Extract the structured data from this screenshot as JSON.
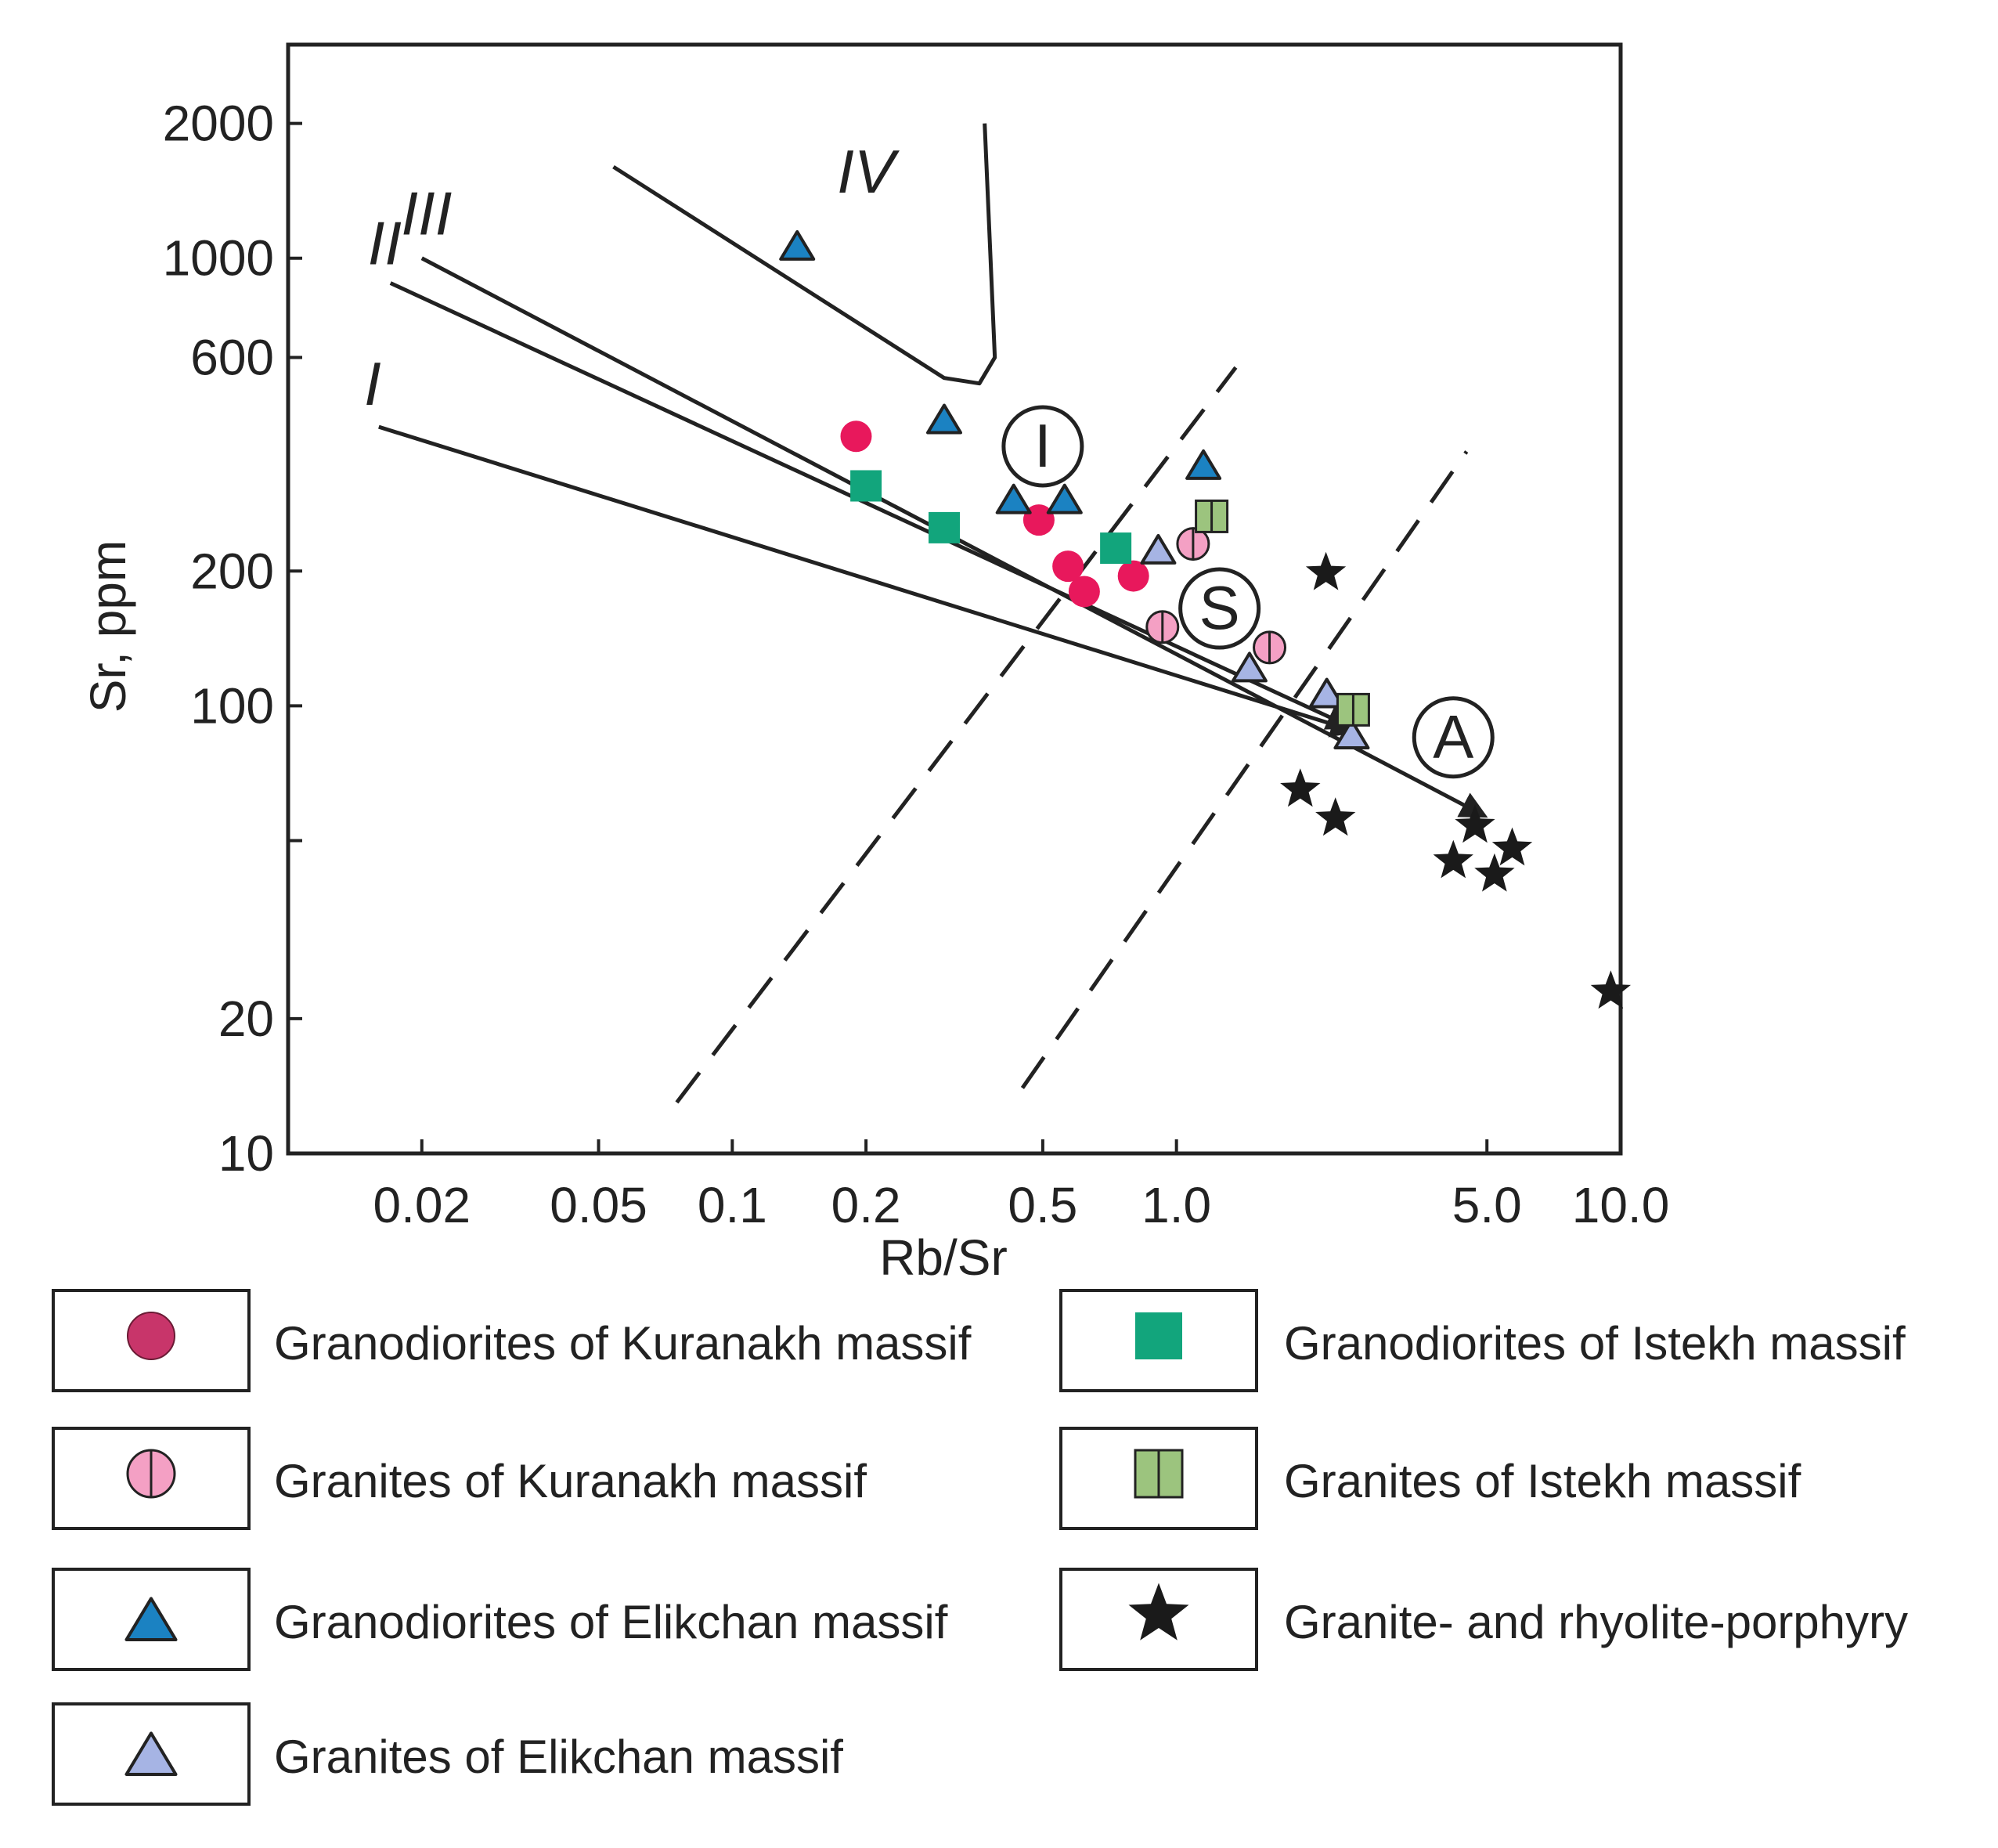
{
  "chart_data": {
    "type": "scatter",
    "title": "",
    "xlabel": "Rb/Sr",
    "ylabel": "Sr, ppm",
    "xscale": "log",
    "yscale": "log",
    "xlim": [
      0.01,
      10.0
    ],
    "ylim": [
      10,
      3000
    ],
    "x_ticks": [
      {
        "value": 0.02,
        "label": "0.02"
      },
      {
        "value": 0.05,
        "label": "0.05"
      },
      {
        "value": 0.1,
        "label": "0.1"
      },
      {
        "value": 0.2,
        "label": "0.2"
      },
      {
        "value": 0.5,
        "label": "0.5"
      },
      {
        "value": 1.0,
        "label": "1.0"
      },
      {
        "value": 5.0,
        "label": "5.0"
      },
      {
        "value": 10.0,
        "label": "10.0"
      }
    ],
    "y_ticks": [
      {
        "value": 10,
        "label": "10"
      },
      {
        "value": 20,
        "label": "20"
      },
      {
        "value": 50,
        "label": ""
      },
      {
        "value": 100,
        "label": "100"
      },
      {
        "value": 200,
        "label": "200"
      },
      {
        "value": 600,
        "label": "600"
      },
      {
        "value": 1000,
        "label": "1000"
      },
      {
        "value": 2000,
        "label": "2000"
      }
    ],
    "series": [
      {
        "name": "Granodiorites of Kuranakh massif",
        "marker": "circle",
        "color": "#e8185c",
        "points": [
          [
            0.19,
            400
          ],
          [
            0.49,
            260
          ],
          [
            0.57,
            205
          ],
          [
            0.62,
            180
          ],
          [
            0.8,
            195
          ]
        ]
      },
      {
        "name": "Granites of Kuranakh massif",
        "marker": "circle-split",
        "color": "#f4a0c4",
        "points": [
          [
            1.09,
            230
          ],
          [
            0.93,
            150
          ],
          [
            1.62,
            135
          ]
        ]
      },
      {
        "name": "Granodiorites of Elikchan massif",
        "marker": "triangle",
        "color": "#1b82c2",
        "points": [
          [
            0.14,
            1050
          ],
          [
            0.3,
            430
          ],
          [
            0.43,
            285
          ],
          [
            0.56,
            285
          ],
          [
            1.15,
            340
          ]
        ]
      },
      {
        "name": "Granites of Elikchan massif",
        "marker": "triangle",
        "color": "#a6b4e4",
        "points": [
          [
            0.91,
            220
          ],
          [
            1.46,
            120
          ],
          [
            2.18,
            105
          ],
          [
            2.48,
            85
          ]
        ]
      },
      {
        "name": "Granodiorites of Istekh massif",
        "marker": "square",
        "color": "#12a57c",
        "points": [
          [
            0.2,
            310
          ],
          [
            0.3,
            250
          ],
          [
            0.73,
            225
          ]
        ]
      },
      {
        "name": "Granites of Istekh massif",
        "marker": "square-split",
        "color": "#9cc47e",
        "points": [
          [
            1.2,
            265
          ],
          [
            2.5,
            98
          ]
        ]
      },
      {
        "name": "Granite- and rhyolite-porphyry",
        "marker": "star",
        "color": "#1a1a1a",
        "points": [
          [
            2.17,
            198
          ],
          [
            1.9,
            65
          ],
          [
            2.28,
            56
          ],
          [
            4.7,
            54
          ],
          [
            5.7,
            48
          ],
          [
            4.2,
            45
          ],
          [
            5.2,
            42
          ],
          [
            9.5,
            23
          ]
        ]
      }
    ],
    "trend_lines": [
      {
        "label": "I",
        "points": [
          [
            0.016,
            420
          ],
          [
            2.5,
            88
          ]
        ]
      },
      {
        "label": "II",
        "points": [
          [
            0.017,
            880
          ],
          [
            2.45,
            90
          ]
        ]
      },
      {
        "label": "III",
        "points": [
          [
            0.02,
            1000
          ],
          [
            4.9,
            57
          ]
        ]
      },
      {
        "label": "IV",
        "points": [
          [
            0.054,
            1600
          ],
          [
            0.3,
            540
          ],
          [
            0.36,
            525
          ],
          [
            0.39,
            600
          ],
          [
            0.37,
            2000
          ]
        ]
      }
    ],
    "dashed_lines": [
      {
        "points": [
          [
            0.075,
            13
          ],
          [
            1.36,
            570
          ]
        ]
      },
      {
        "points": [
          [
            0.45,
            14
          ],
          [
            4.5,
            370
          ]
        ]
      }
    ],
    "annotations": [
      {
        "text": "IV",
        "x": 0.2,
        "y": 1400,
        "style": "italic"
      },
      {
        "text": "III",
        "x": 0.0205,
        "y": 1130,
        "style": "italic"
      },
      {
        "text": "II",
        "x": 0.0165,
        "y": 970,
        "style": "italic"
      },
      {
        "text": "I",
        "x": 0.0155,
        "y": 470,
        "style": "italic"
      },
      {
        "text": "I",
        "x": 0.5,
        "y": 380,
        "style": "circled"
      },
      {
        "text": "S",
        "x": 1.25,
        "y": 165,
        "style": "circled"
      },
      {
        "text": "A",
        "x": 4.2,
        "y": 85,
        "style": "circled"
      }
    ]
  },
  "legend": {
    "items": [
      {
        "label": "Granodiorites of Kuranakh massif",
        "marker": "circle",
        "color": "#c8356a"
      },
      {
        "label": "Granites of Kuranakh massif",
        "marker": "circle-split",
        "color": "#f4a0c4"
      },
      {
        "label": "Granodiorites of Elikchan massif",
        "marker": "triangle",
        "color": "#1b82c2"
      },
      {
        "label": "Granites of Elikchan massif",
        "marker": "triangle",
        "color": "#a6b4e4"
      },
      {
        "label": "Granodiorites of Istekh massif",
        "marker": "square",
        "color": "#12a57c"
      },
      {
        "label": "Granites of Istekh massif",
        "marker": "square-split",
        "color": "#9cc47e"
      },
      {
        "label": "Granite- and rhyolite-porphyry",
        "marker": "star",
        "color": "#1a1a1a"
      }
    ]
  }
}
